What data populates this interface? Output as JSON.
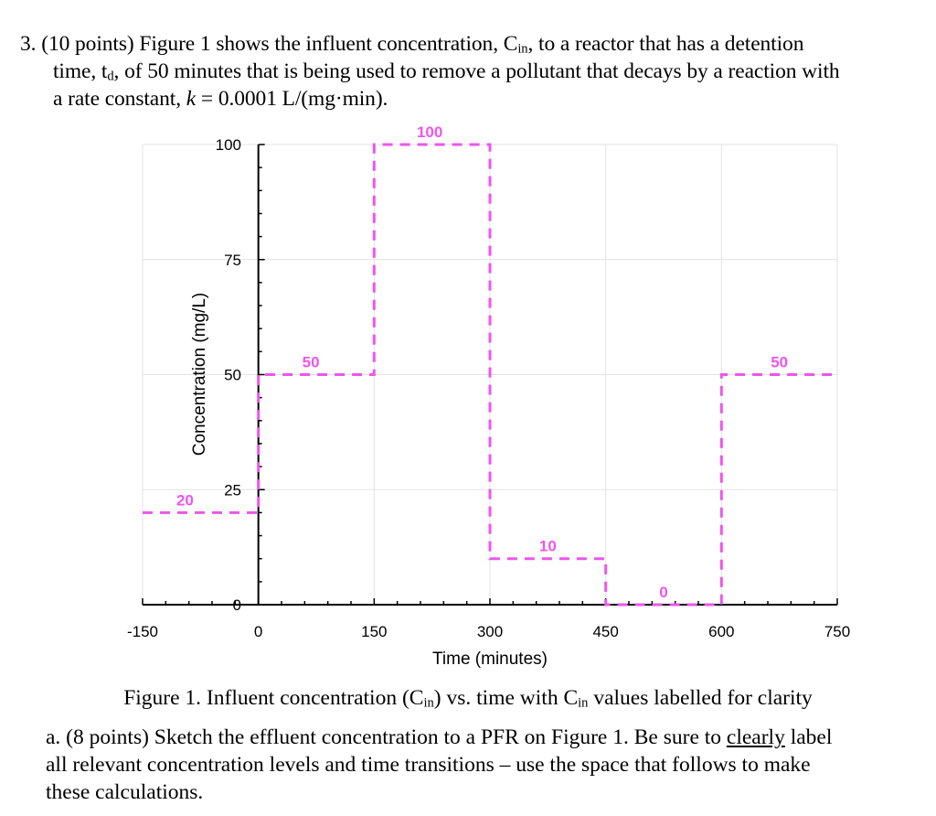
{
  "question": {
    "number": "3.",
    "line1": {
      "pre": "(10 points) Figure 1 shows the influent concentration, C",
      "sub": "in",
      "post": ", to a reactor that has a detention"
    },
    "line2": {
      "pre": "time, t",
      "sub": "d",
      "post": ", of 50 minutes that is being used to remove a pollutant that decays by a reaction with"
    },
    "line3": {
      "pre": "a rate constant, ",
      "k": "k",
      "post": " = 0.0001 L/(mg·min)."
    }
  },
  "chart_data": {
    "type": "line",
    "xlabel": "Time (minutes)",
    "ylabel": "Concentration (mg/L)",
    "xlim": [
      -150,
      750
    ],
    "ylim": [
      0,
      100
    ],
    "x_ticks": [
      "-150",
      "0",
      "150",
      "300",
      "450",
      "600",
      "750"
    ],
    "y_ticks": [
      "0",
      "25",
      "50",
      "75",
      "100"
    ],
    "grid": true,
    "series": [
      {
        "color": "#ee55ee",
        "style": "dashed-step",
        "points": [
          {
            "x": -150,
            "y": 20
          },
          {
            "x": 0,
            "y": 20
          },
          {
            "x": 0,
            "y": 50
          },
          {
            "x": 150,
            "y": 50
          },
          {
            "x": 150,
            "y": 100
          },
          {
            "x": 300,
            "y": 100
          },
          {
            "x": 300,
            "y": 10
          },
          {
            "x": 450,
            "y": 10
          },
          {
            "x": 450,
            "y": 0
          },
          {
            "x": 600,
            "y": 0
          },
          {
            "x": 600,
            "y": 50
          },
          {
            "x": 750,
            "y": 50
          }
        ]
      }
    ],
    "annotations": [
      {
        "text": "20",
        "x": -95,
        "y": 20
      },
      {
        "text": "50",
        "x": 68,
        "y": 50
      },
      {
        "text": "100",
        "x": 222,
        "y": 100
      },
      {
        "text": "10",
        "x": 375,
        "y": 10
      },
      {
        "text": "0",
        "x": 525,
        "y": 0
      },
      {
        "text": "50",
        "x": 675,
        "y": 50
      }
    ]
  },
  "caption": {
    "pre": "Figure 1. Influent concentration (C",
    "sub1": "in",
    "mid": ") vs. time with C",
    "sub2": "in",
    "post": " values labelled for clarity"
  },
  "part_a": {
    "line1_pre": "a. (8 points) Sketch the effluent concentration to a PFR on Figure 1. Be sure to ",
    "line1_underlined": "clearly",
    "line1_post": " label",
    "line2": "all relevant concentration levels and time transitions – use the space that follows to make",
    "line3": "these calculations."
  }
}
